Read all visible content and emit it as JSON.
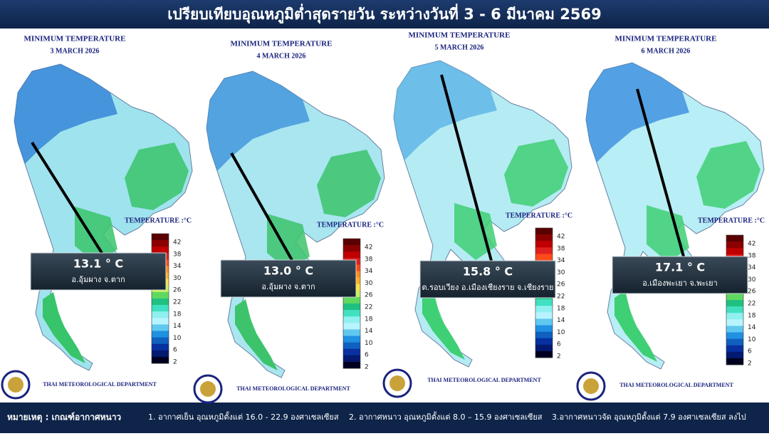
{
  "header": {
    "title": "เปรียบเทียบอุณหภูมิต่ำสุดรายวัน ระหว่างวันที่ 3 - 6 มีนาคม 2569"
  },
  "map_title": "MINIMUM TEMPERATURE",
  "legend": {
    "label": "TEMPERATURE :°C",
    "ticks": [
      "42",
      "38",
      "34",
      "30",
      "26",
      "22",
      "18",
      "14",
      "10",
      "6",
      "2"
    ]
  },
  "credit": "THAI METEOROLOGICAL DEPARTMENT",
  "panels": [
    {
      "date": "3 MARCH 2026",
      "value": "13.1 ° C",
      "location": "อ.อุ้มผาง จ.ตาก"
    },
    {
      "date": "4 MARCH 2026",
      "value": "13.0 ° C",
      "location": "อ.อุ้มผาง จ.ตาก"
    },
    {
      "date": "5 MARCH 2026",
      "value": "15.8 ° C",
      "location": "ต.รอบเวียง อ.เมืองเชียงราย จ.เชียงราย"
    },
    {
      "date": "6 MARCH 2026",
      "value": "17.1 ° C",
      "location": "อ.เมืองพะเยา จ.พะเยา"
    }
  ],
  "footer": {
    "label": "หมายเหตุ : เกณฑ์อากาศหนาว",
    "notes": [
      "1. อากาศเย็น อุณหภูมิตั้งแต่ 16.0 - 22.9 องศาเซลเซียส",
      "2. อากาศหนาว อุณหภูมิตั้งแต่ 8.0 – 15.9 องศาเซลเซียส",
      "3.อากาศหนาวจัด อุณหภูมิตั้งแต่ 7.9 องศาเซลเซียส ลงไป"
    ]
  }
}
